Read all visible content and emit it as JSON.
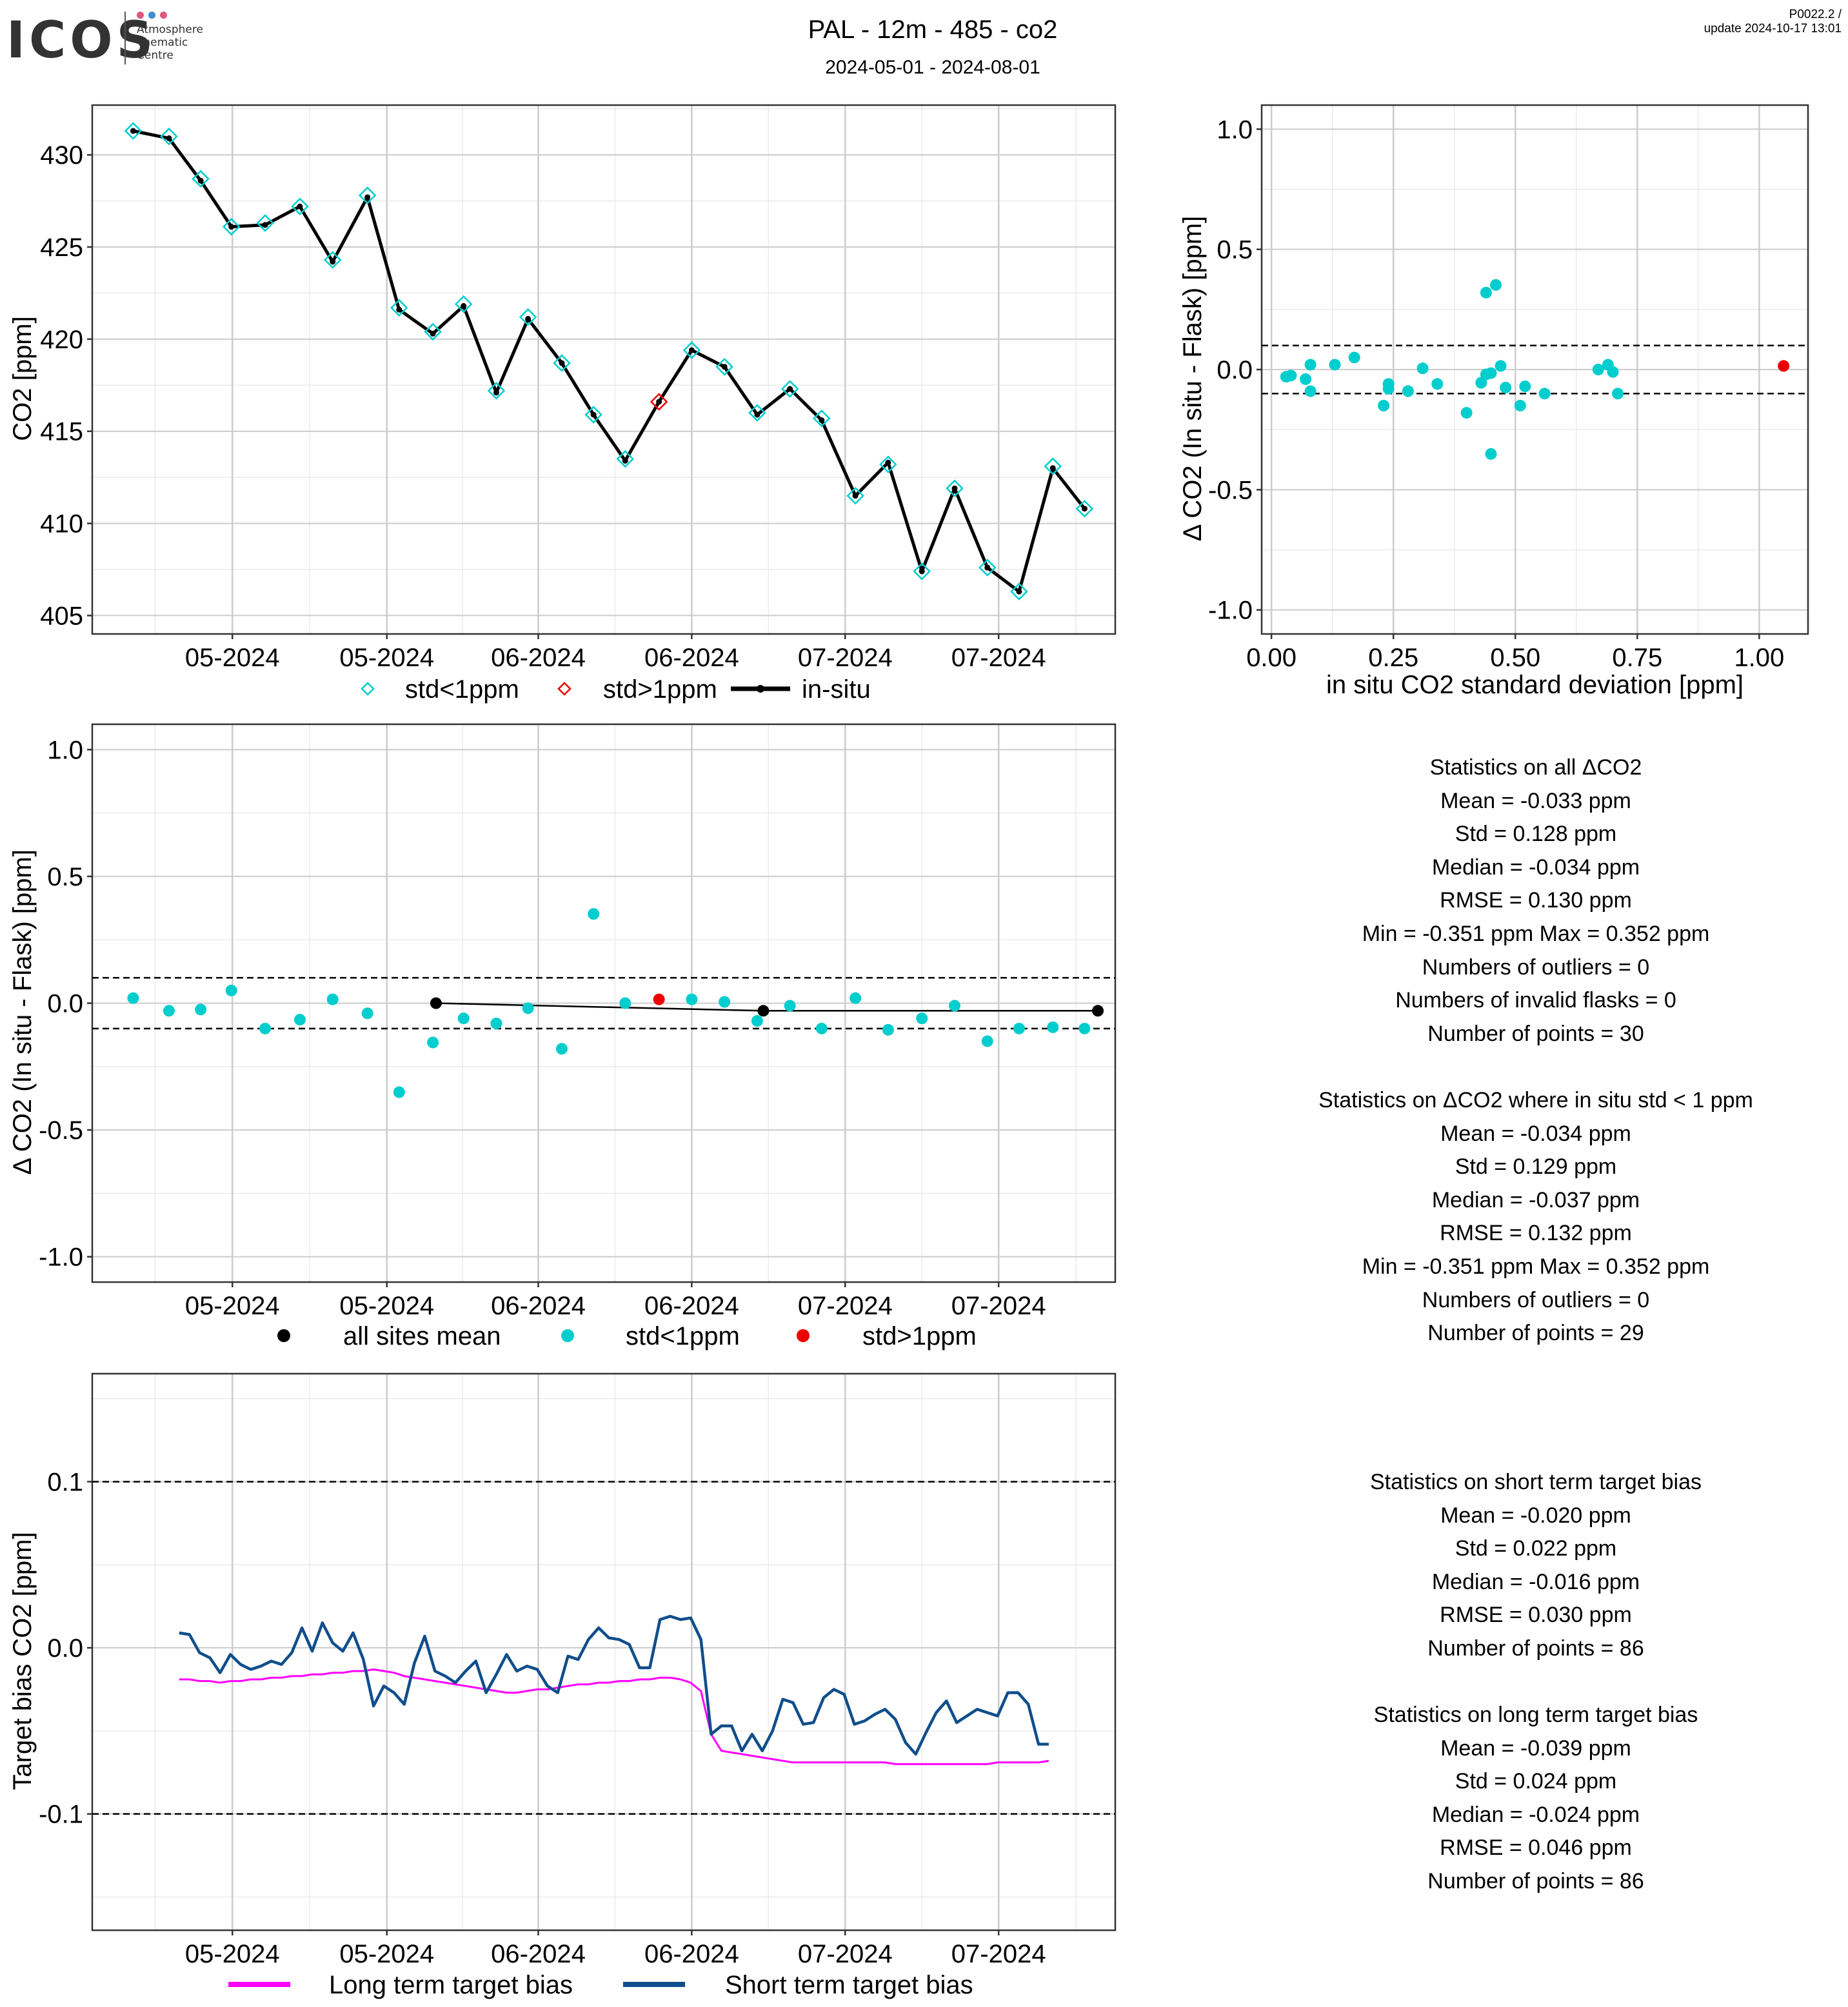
{
  "header": {
    "logo_text": "ICOS",
    "logo_sub": [
      "Atmosphere",
      "Thematic",
      "Centre"
    ],
    "title": "PAL - 12m - 485 - co2",
    "subtitle": "2024-05-01 - 2024-08-01",
    "version": "P0022.2 /",
    "update": "update  2024-10-17 13:01"
  },
  "colors": {
    "cyan": "#00CDCD",
    "red": "#EE0000",
    "black": "#000000",
    "magenta": "#FF00FF",
    "navy": "#104E8B",
    "grid_major": "#CCCCCC",
    "grid_minor": "#EBEBEB"
  },
  "stats_all": [
    "Statistics on all ΔCO2",
    "Mean =  -0.033 ppm",
    "Std =  0.128 ppm",
    "Median =  -0.034 ppm",
    "RMSE =  0.130 ppm",
    "Min =  -0.351 ppm Max =  0.352 ppm",
    "Numbers of outliers =  0",
    "Numbers of invalid flasks =  0",
    "Number of points =  30"
  ],
  "stats_std1": [
    "Statistics on ΔCO2 where in situ std < 1 ppm",
    "Mean =  -0.034 ppm",
    "Std =  0.129 ppm",
    "Median =  -0.037 ppm",
    "RMSE =  0.132 ppm",
    "Min =  -0.351 ppm Max =  0.352 ppm",
    "Numbers of outliers =  0",
    "Number of points =  29"
  ],
  "stats_short": [
    "Statistics on short term target bias",
    "Mean =  -0.020 ppm",
    "Std =  0.022 ppm",
    "Median =  -0.016 ppm",
    "RMSE =  0.030 ppm",
    "Number of points =  86"
  ],
  "stats_long": [
    "Statistics on long term target bias",
    "Mean =  -0.039 ppm",
    "Std =  0.024 ppm",
    "Median =  -0.024 ppm",
    "RMSE =  0.046 ppm",
    "Number of points =  86"
  ],
  "chart_data": [
    {
      "id": "co2",
      "type": "line",
      "xlabel": "",
      "ylabel": "CO2 [ppm]",
      "xlim": [
        0,
        100
      ],
      "ylim": [
        404,
        432.7
      ],
      "yticks": [
        405,
        410,
        415,
        420,
        425,
        430
      ],
      "ytick_labels": [
        "405",
        "410",
        "415",
        "420",
        "425",
        "430"
      ],
      "xticks": [
        13.7,
        28.8,
        43.6,
        58.6,
        73.6,
        88.6
      ],
      "xtick_labels": [
        "05-2024",
        "05-2024",
        "06-2024",
        "06-2024",
        "07-2024",
        "07-2024"
      ],
      "legend": [
        "std<1ppm",
        "std>1ppm",
        "in-situ"
      ],
      "x": [
        4,
        7.5,
        10.6,
        13.6,
        16.9,
        20.3,
        23.5,
        26.9,
        30,
        33.3,
        36.3,
        39.5,
        42.6,
        45.9,
        49,
        52.1,
        55.4,
        58.6,
        61.8,
        65,
        68.2,
        71.3,
        74.6,
        77.8,
        81.1,
        84.3,
        87.5,
        90.6,
        93.9,
        97
      ],
      "insitu": [
        431.3,
        430.9,
        428.6,
        426.1,
        426.2,
        427.2,
        424.2,
        427.7,
        421.6,
        420.3,
        421.8,
        417.1,
        421.1,
        418.7,
        415.9,
        413.4,
        416.6,
        419.4,
        418.5,
        415.9,
        417.3,
        415.6,
        411.5,
        413.3,
        407.4,
        411.9,
        407.6,
        406.3,
        413.0,
        410.8
      ],
      "flask": [
        431.3,
        431.0,
        428.7,
        426.1,
        426.3,
        427.2,
        424.3,
        427.8,
        421.7,
        420.4,
        421.9,
        417.2,
        421.2,
        418.7,
        415.9,
        413.5,
        416.6,
        419.4,
        418.5,
        416.0,
        417.3,
        415.7,
        411.5,
        413.2,
        407.4,
        411.9,
        407.6,
        406.3,
        413.1,
        410.8
      ],
      "flask_flag": [
        0,
        0,
        0,
        0,
        0,
        0,
        0,
        0,
        0,
        0,
        0,
        0,
        0,
        0,
        0,
        0,
        1,
        0,
        0,
        0,
        0,
        0,
        0,
        0,
        0,
        0,
        0,
        0,
        0,
        0
      ]
    },
    {
      "id": "scatter_std",
      "type": "scatter",
      "xlabel": "in situ CO2 standard deviation [ppm]",
      "ylabel": "Δ CO2 (In situ - Flask) [ppm]",
      "xlim": [
        -0.02,
        1.1
      ],
      "ylim": [
        -1.1,
        1.1
      ],
      "xticks": [
        0,
        0.25,
        0.5,
        0.75,
        1.0
      ],
      "xtick_labels": [
        "0.00",
        "0.25",
        "0.50",
        "0.75",
        "1.00"
      ],
      "yticks": [
        -1,
        -0.5,
        0,
        0.5,
        1
      ],
      "ytick_labels": [
        "-1.0",
        "-0.5",
        "0.0",
        "0.5",
        "1.0"
      ],
      "hlines": [
        0.1,
        -0.1
      ],
      "x": [
        0.03,
        0.04,
        0.07,
        0.08,
        0.08,
        0.13,
        0.17,
        0.23,
        0.24,
        0.24,
        0.28,
        0.31,
        0.34,
        0.4,
        0.43,
        0.44,
        0.44,
        0.45,
        0.45,
        0.46,
        0.47,
        0.48,
        0.51,
        0.52,
        0.56,
        0.67,
        0.69,
        0.7,
        0.71,
        1.05
      ],
      "y": [
        -0.03,
        -0.025,
        -0.04,
        0.02,
        -0.09,
        0.02,
        0.05,
        -0.15,
        -0.08,
        -0.06,
        -0.09,
        0.005,
        -0.06,
        -0.18,
        -0.055,
        0.32,
        -0.02,
        -0.351,
        -0.015,
        0.352,
        0.015,
        -0.075,
        -0.15,
        -0.07,
        -0.1,
        0.0,
        0.02,
        -0.01,
        -0.1,
        0.015
      ],
      "flag": [
        0,
        0,
        0,
        0,
        0,
        0,
        0,
        0,
        0,
        0,
        0,
        0,
        0,
        0,
        0,
        0,
        0,
        0,
        0,
        0,
        0,
        0,
        0,
        0,
        0,
        0,
        0,
        0,
        0,
        1
      ]
    },
    {
      "id": "delta_time",
      "type": "scatter",
      "xlabel": "",
      "ylabel": "Δ CO2 (In situ - Flask) [ppm]",
      "xlim": [
        0,
        100
      ],
      "ylim": [
        -1.1,
        1.1
      ],
      "yticks": [
        -1,
        -0.5,
        0,
        0.5,
        1
      ],
      "ytick_labels": [
        "-1.0",
        "-0.5",
        "0.0",
        "0.5",
        "1.0"
      ],
      "xticks": [
        13.7,
        28.8,
        43.6,
        58.6,
        73.6,
        88.6
      ],
      "xtick_labels": [
        "05-2024",
        "05-2024",
        "06-2024",
        "06-2024",
        "07-2024",
        "07-2024"
      ],
      "hlines": [
        0.1,
        -0.1
      ],
      "legend": [
        "all sites mean",
        "std<1ppm",
        "std>1ppm"
      ],
      "x": [
        4,
        7.5,
        10.6,
        13.6,
        16.9,
        20.3,
        23.5,
        26.9,
        30,
        33.3,
        36.3,
        39.5,
        42.6,
        45.9,
        49,
        52.1,
        55.4,
        58.6,
        61.8,
        65,
        68.2,
        71.3,
        74.6,
        77.8,
        81.1,
        84.3,
        87.5,
        90.6,
        93.9,
        97
      ],
      "y": [
        0.02,
        -0.03,
        -0.025,
        0.05,
        -0.1,
        -0.065,
        0.015,
        -0.04,
        -0.351,
        -0.155,
        -0.06,
        -0.08,
        -0.02,
        -0.18,
        0.352,
        0.0,
        0.015,
        0.015,
        0.005,
        -0.07,
        -0.01,
        -0.1,
        0.02,
        -0.105,
        -0.06,
        -0.01,
        -0.15,
        -0.1,
        -0.095,
        -0.1
      ],
      "flag": [
        0,
        0,
        0,
        0,
        0,
        0,
        0,
        0,
        0,
        0,
        0,
        0,
        0,
        0,
        0,
        0,
        1,
        0,
        0,
        0,
        0,
        0,
        0,
        0,
        0,
        0,
        0,
        0,
        0,
        0
      ],
      "mean_x": [
        33.6,
        65.6,
        98.3
      ],
      "mean_y": [
        0.0,
        -0.03,
        -0.03
      ]
    },
    {
      "id": "target_bias",
      "type": "line",
      "xlabel": "",
      "ylabel": "Target bias CO2 [ppm]",
      "xlim": [
        0,
        100
      ],
      "ylim": [
        -0.17,
        0.165
      ],
      "yticks": [
        -0.1,
        0.0,
        0.1
      ],
      "ytick_labels": [
        "-0.1",
        "0.0",
        "0.1"
      ],
      "xticks": [
        13.7,
        28.8,
        43.6,
        58.6,
        73.6,
        88.6
      ],
      "xtick_labels": [
        "05-2024",
        "05-2024",
        "06-2024",
        "06-2024",
        "07-2024",
        "07-2024"
      ],
      "hlines": [
        0.1,
        -0.1
      ],
      "legend": [
        "Long term target bias",
        "Short term target bias"
      ],
      "x_start": 8.5,
      "x_step": 1.0,
      "short": [
        0.009,
        0.008,
        -0.003,
        -0.006,
        -0.015,
        -0.004,
        -0.01,
        -0.013,
        -0.011,
        -0.008,
        -0.01,
        -0.003,
        0.012,
        -0.002,
        0.015,
        0.003,
        -0.002,
        0.009,
        -0.007,
        -0.035,
        -0.023,
        -0.027,
        -0.034,
        -0.009,
        0.007,
        -0.014,
        -0.017,
        -0.021,
        -0.014,
        -0.008,
        -0.027,
        -0.016,
        -0.004,
        -0.014,
        -0.011,
        -0.013,
        -0.023,
        -0.027,
        -0.005,
        -0.007,
        0.005,
        0.012,
        0.006,
        0.005,
        0.002,
        -0.012,
        -0.012,
        0.017,
        0.019,
        0.017,
        0.018,
        0.005,
        -0.052,
        -0.047,
        -0.047,
        -0.062,
        -0.052,
        -0.062,
        -0.05,
        -0.031,
        -0.033,
        -0.046,
        -0.045,
        -0.03,
        -0.025,
        -0.028,
        -0.046,
        -0.044,
        -0.04,
        -0.037,
        -0.043,
        -0.057,
        -0.064,
        -0.051,
        -0.039,
        -0.032,
        -0.045,
        -0.041,
        -0.037,
        -0.039,
        -0.041,
        -0.027,
        -0.027,
        -0.034,
        -0.058,
        -0.058
      ],
      "long": [
        -0.019,
        -0.019,
        -0.02,
        -0.02,
        -0.021,
        -0.02,
        -0.02,
        -0.019,
        -0.019,
        -0.018,
        -0.018,
        -0.017,
        -0.017,
        -0.016,
        -0.016,
        -0.015,
        -0.015,
        -0.014,
        -0.014,
        -0.013,
        -0.014,
        -0.015,
        -0.017,
        -0.018,
        -0.019,
        -0.02,
        -0.021,
        -0.022,
        -0.023,
        -0.024,
        -0.025,
        -0.026,
        -0.027,
        -0.027,
        -0.026,
        -0.025,
        -0.025,
        -0.024,
        -0.023,
        -0.022,
        -0.022,
        -0.021,
        -0.021,
        -0.02,
        -0.02,
        -0.019,
        -0.019,
        -0.018,
        -0.018,
        -0.019,
        -0.021,
        -0.026,
        -0.052,
        -0.062,
        -0.063,
        -0.064,
        -0.065,
        -0.066,
        -0.067,
        -0.068,
        -0.069,
        -0.069,
        -0.069,
        -0.069,
        -0.069,
        -0.069,
        -0.069,
        -0.069,
        -0.069,
        -0.069,
        -0.07,
        -0.07,
        -0.07,
        -0.07,
        -0.07,
        -0.07,
        -0.07,
        -0.07,
        -0.07,
        -0.07,
        -0.069,
        -0.069,
        -0.069,
        -0.069,
        -0.069,
        -0.068
      ]
    }
  ]
}
